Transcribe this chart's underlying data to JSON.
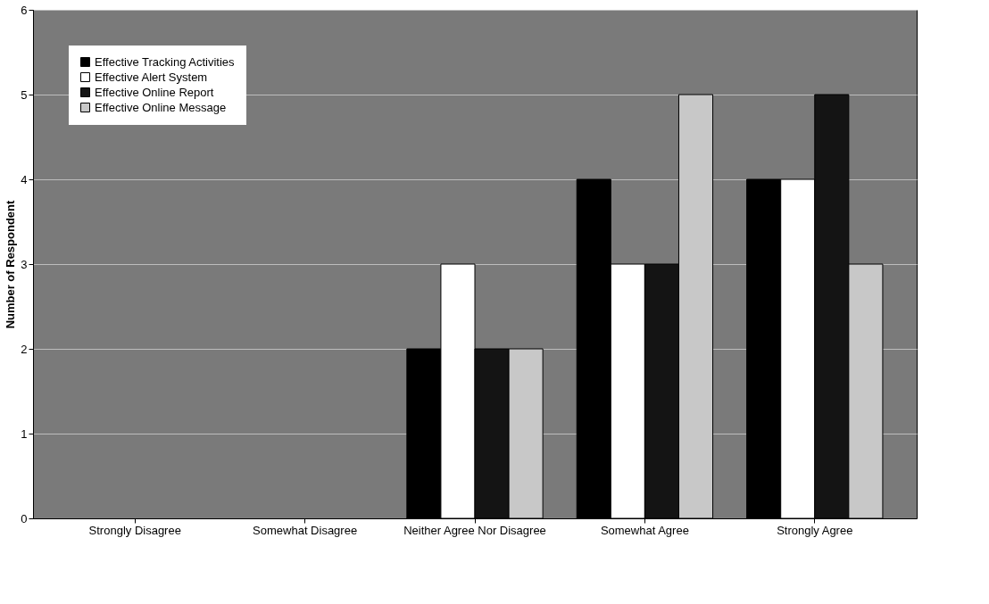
{
  "chart_data": {
    "type": "bar",
    "ylabel": "Number of Respondent",
    "categories": [
      "Strongly Disagree",
      "Somewhat Disagree",
      "Neither Agree Nor Disagree",
      "Somewhat Agree",
      "Strongly Agree"
    ],
    "series": [
      {
        "name": "Effective Tracking Activities",
        "color": "#000000",
        "values": [
          0,
          0,
          2,
          4,
          4
        ]
      },
      {
        "name": "Effective Alert System",
        "color": "#ffffff",
        "values": [
          0,
          0,
          3,
          3,
          4
        ]
      },
      {
        "name": "Effective Online Report",
        "color": "#141414",
        "values": [
          0,
          0,
          2,
          3,
          5
        ]
      },
      {
        "name": "Effective Online Message",
        "color": "#c8c8c8",
        "values": [
          0,
          0,
          2,
          5,
          3
        ]
      }
    ],
    "ylim": [
      0,
      6
    ],
    "yticks": [
      0,
      1,
      2,
      3,
      4,
      5,
      6
    ],
    "grid": "y",
    "legend": "top left"
  }
}
